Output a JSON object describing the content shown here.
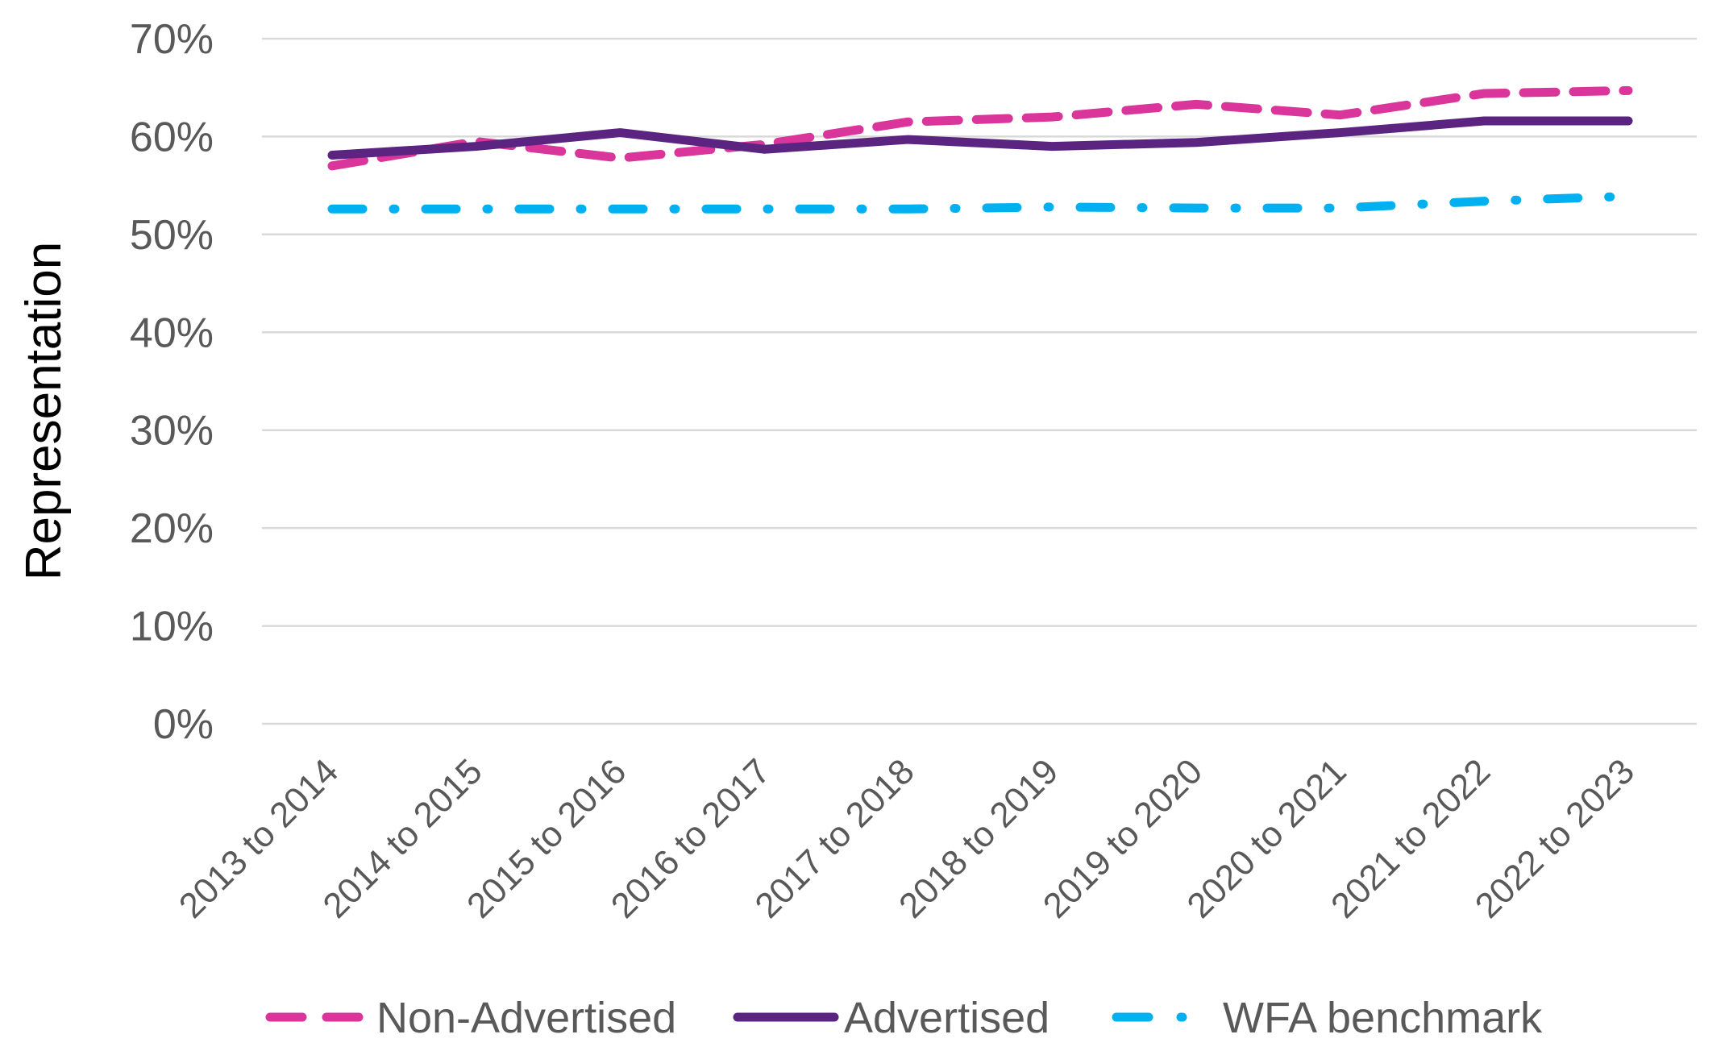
{
  "chart_data": {
    "type": "line",
    "title": "",
    "xlabel": "",
    "ylabel": "Representation",
    "ylim": [
      0,
      70
    ],
    "ytick_values": [
      0,
      10,
      20,
      30,
      40,
      50,
      60,
      70
    ],
    "ytick_labels": [
      "0%",
      "10%",
      "20%",
      "30%",
      "40%",
      "50%",
      "60%",
      "70%"
    ],
    "grid": true,
    "legend_position": "bottom",
    "categories": [
      "2013 to 2014",
      "2014 to 2015",
      "2015 to 2016",
      "2016 to 2017",
      "2017 to 2018",
      "2018 to 2019",
      "2019 to 2020",
      "2020 to 2021",
      "2021 to 2022",
      "2022 to 2023"
    ],
    "series": [
      {
        "name": "Non-Advertised",
        "color": "#d9359a",
        "style": "dashed",
        "values": [
          57.0,
          59.5,
          57.8,
          59.2,
          61.5,
          62.0,
          63.3,
          62.2,
          64.4,
          64.7
        ]
      },
      {
        "name": "Advertised",
        "color": "#5a2480",
        "style": "solid",
        "values": [
          58.1,
          59.0,
          60.4,
          58.7,
          59.7,
          59.0,
          59.4,
          60.4,
          61.6,
          61.6
        ]
      },
      {
        "name": "WFA benchmark",
        "color": "#00b0f0",
        "style": "dash-dot",
        "values": [
          52.6,
          52.6,
          52.6,
          52.6,
          52.6,
          52.8,
          52.7,
          52.7,
          53.4,
          53.9
        ]
      }
    ]
  }
}
